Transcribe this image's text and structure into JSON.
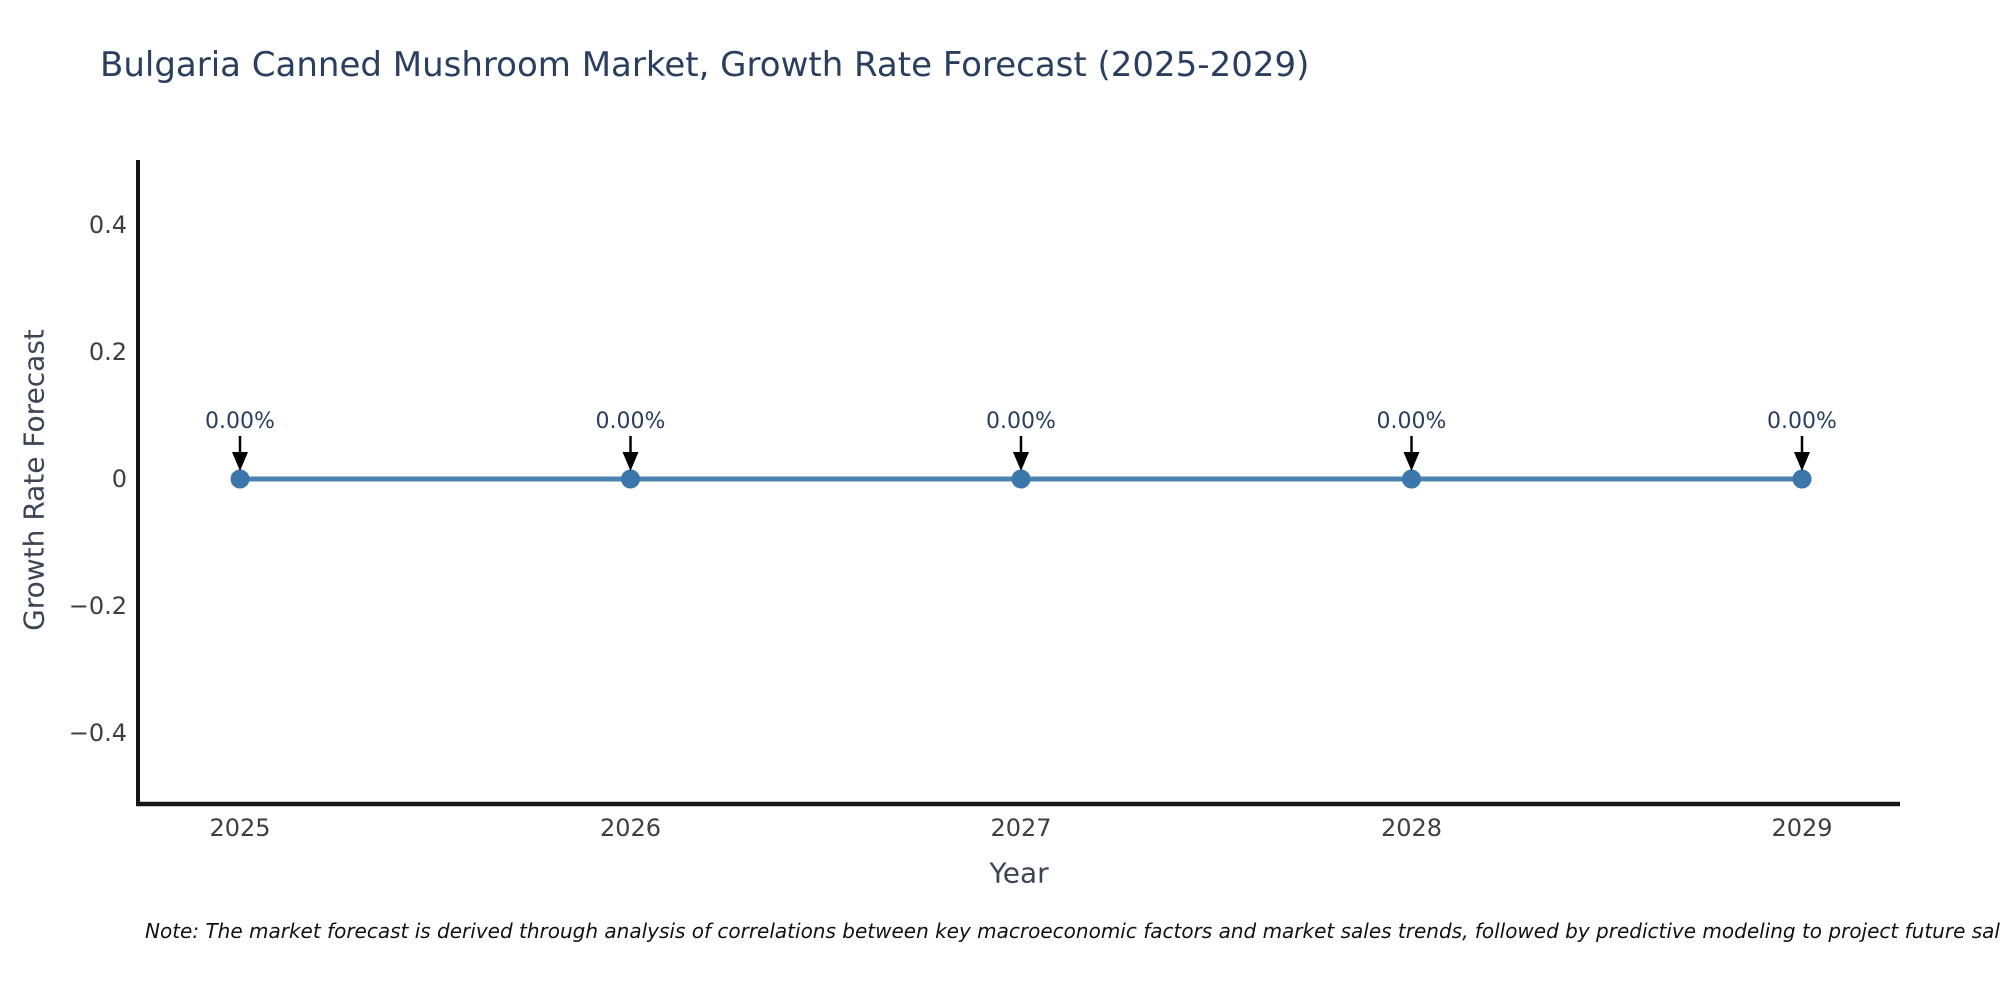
{
  "chart_data": {
    "type": "line",
    "title": "Bulgaria Canned Mushroom Market, Growth Rate Forecast (2025-2029)",
    "categories": [
      "2025",
      "2026",
      "2027",
      "2028",
      "2029"
    ],
    "values": [
      0,
      0,
      0,
      0,
      0
    ],
    "point_labels": [
      "0.00%",
      "0.00%",
      "0.00%",
      "0.00%",
      "0.00%"
    ],
    "xlabel": "Year",
    "ylabel": "Growth Rate Forecast",
    "yticks": [
      0.4,
      0.2,
      0,
      -0.2,
      -0.4
    ],
    "ytick_labels": [
      "0.4",
      "0.2",
      "0",
      "−0.2",
      "−0.4"
    ],
    "ylim": [
      -0.5,
      0.5
    ],
    "grid": false,
    "legend": "none",
    "line_color": "#4b83b2",
    "marker_color": "#3c77ab",
    "annotation_text_color": "#2a3f5f",
    "arrow_color": "#000000",
    "axis_color": "#161616",
    "tick_color": "#3f3f3f",
    "note": "Note: The market forecast is derived through analysis of correlations between key macroeconomic factors and market sales trends, followed by predictive modeling to project future sales."
  }
}
